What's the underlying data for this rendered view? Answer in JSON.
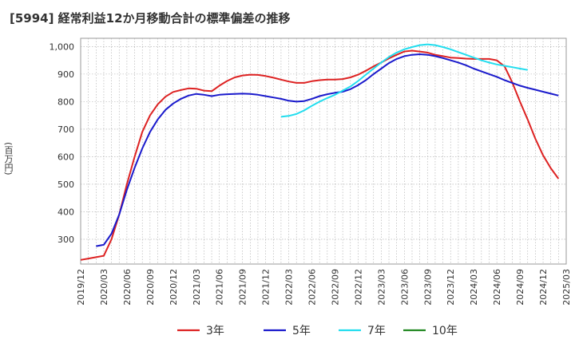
{
  "title": "[5994]  経常利益12か月移動合計の標準偏差の推移",
  "chart_data": {
    "type": "line",
    "title": "[5994]  経常利益12か月移動合計の標準偏差の推移",
    "ylabel": "(百万円)",
    "xlabel": "",
    "ylim": [
      210,
      1030
    ],
    "yticks": [
      300,
      400,
      500,
      600,
      700,
      800,
      900,
      1000
    ],
    "ytick_labels": [
      "300",
      "400",
      "500",
      "600",
      "700",
      "800",
      "900",
      "1,000"
    ],
    "xticks": [
      "2019/12",
      "2020/03",
      "2020/06",
      "2020/09",
      "2020/12",
      "2021/03",
      "2021/06",
      "2021/09",
      "2021/12",
      "2022/03",
      "2022/06",
      "2022/09",
      "2022/12",
      "2023/03",
      "2023/06",
      "2023/09",
      "2023/12",
      "2024/03",
      "2024/06",
      "2024/09",
      "2024/12",
      "2025/03"
    ],
    "grid": true,
    "legend_position": "bottom",
    "series": [
      {
        "name": "3年",
        "color": "#dd2222",
        "start": "2019/12",
        "values": [
          225,
          230,
          235,
          240,
          300,
          390,
          500,
          600,
          690,
          750,
          790,
          818,
          835,
          842,
          848,
          847,
          840,
          838,
          858,
          875,
          888,
          895,
          898,
          897,
          893,
          887,
          880,
          873,
          868,
          868,
          874,
          878,
          880,
          880,
          882,
          888,
          898,
          912,
          928,
          942,
          957,
          970,
          982,
          985,
          982,
          978,
          970,
          965,
          960,
          958,
          956,
          955,
          955,
          955,
          950,
          928,
          870,
          800,
          735,
          665,
          605,
          558,
          520
        ]
      },
      {
        "name": "5年",
        "color": "#1a1acc",
        "start": "2020/02",
        "values": [
          275,
          280,
          320,
          390,
          480,
          560,
          630,
          690,
          735,
          770,
          793,
          810,
          822,
          828,
          825,
          820,
          825,
          827,
          828,
          829,
          828,
          825,
          820,
          815,
          810,
          803,
          800,
          802,
          810,
          820,
          827,
          832,
          836,
          845,
          860,
          878,
          900,
          920,
          940,
          955,
          965,
          970,
          972,
          970,
          965,
          958,
          950,
          942,
          932,
          920,
          910,
          900,
          890,
          878,
          868,
          858,
          850,
          843,
          836,
          829,
          822
        ]
      },
      {
        "name": "7年",
        "color": "#22ddee",
        "start": "2022/02",
        "values": [
          745,
          748,
          755,
          768,
          785,
          800,
          813,
          825,
          840,
          855,
          875,
          898,
          920,
          942,
          962,
          978,
          990,
          998,
          1005,
          1008,
          1005,
          998,
          990,
          980,
          970,
          960,
          950,
          942,
          935,
          930,
          925,
          920,
          915
        ]
      },
      {
        "name": "10年",
        "color": "#228822",
        "start": "2019/12",
        "values": []
      }
    ]
  }
}
